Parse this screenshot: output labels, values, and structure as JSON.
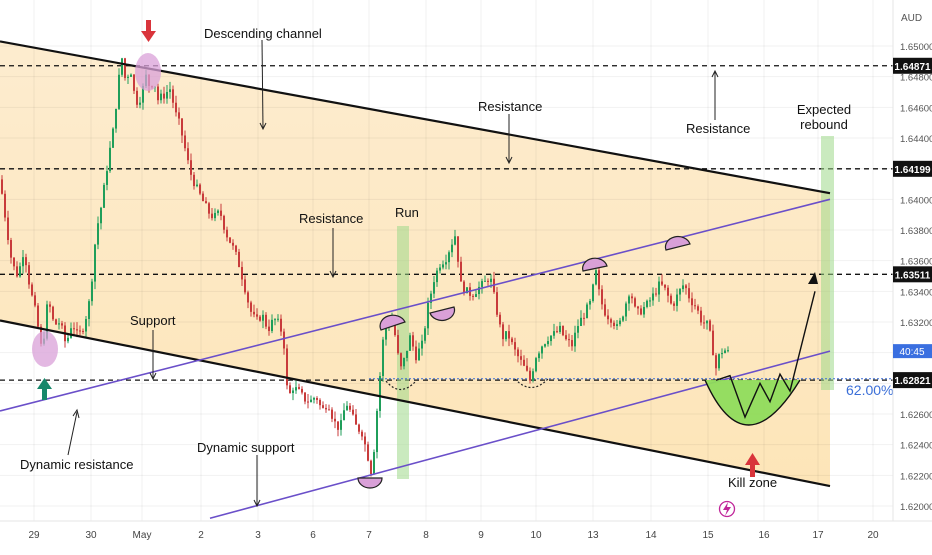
{
  "currency": "AUD",
  "timer": "40:45",
  "fib_label": "62.00%",
  "price_axis": {
    "ticks": [
      "1.65000",
      "1.64800",
      "1.64600",
      "1.64400",
      "1.64200",
      "1.64000",
      "1.63800",
      "1.63600",
      "1.63400",
      "1.63200",
      "1.63000",
      "1.62800",
      "1.62600",
      "1.62400",
      "1.62200",
      "1.62000"
    ],
    "levels": [
      {
        "label": "1.64871",
        "price": 1.64871
      },
      {
        "label": "1.64199",
        "price": 1.64199
      },
      {
        "label": "1.63511",
        "price": 1.63511
      },
      {
        "label": "1.62821",
        "price": 1.62821
      }
    ],
    "current_price": 1.6301
  },
  "time_axis": [
    "29",
    "30",
    "May",
    "2",
    "3",
    "6",
    "7",
    "8",
    "9",
    "10",
    "13",
    "14",
    "15",
    "16",
    "17",
    "20"
  ],
  "annotations": {
    "descending_channel": "Descending channel",
    "resistance_top": "Resistance",
    "resistance_right": "Resistance",
    "resistance_mid": "Resistance",
    "expected_rebound": "Expected\nrebound",
    "run": "Run",
    "support": "Support",
    "dynamic_support": "Dynamic support",
    "dynamic_resistance": "Dynamic resistance",
    "kill_zone": "Kill zone"
  },
  "colors": {
    "zone": "#fde9c4",
    "channel_line": "#111111",
    "trend_line": "#6a4fc9",
    "candle_up": "#1f9e5a",
    "candle_down": "#c83b3b",
    "green_box": "#9ed98a",
    "pink_circle": "#d9a0d8",
    "kill_zone": "#8fdc5c",
    "fib": "#3b6fd8",
    "arrow_red": "#d9343b",
    "arrow_green": "#16876a"
  },
  "chart_data": {
    "type": "candlestick",
    "instrument_quote": "AUD",
    "ylim": [
      1.6193,
      1.6518
    ],
    "x_ticks": [
      "29",
      "30",
      "May",
      "2",
      "3",
      "6",
      "7",
      "8",
      "9",
      "10",
      "13",
      "14",
      "15",
      "16",
      "17",
      "20"
    ],
    "horizontal_levels": [
      1.64871,
      1.64199,
      1.63511,
      1.62821
    ],
    "fib_level": {
      "label": "62.00%",
      "price": 1.6283
    },
    "close_path": [
      [
        0,
        1.6413
      ],
      [
        6,
        1.6385
      ],
      [
        12,
        1.6358
      ],
      [
        18,
        1.635
      ],
      [
        24,
        1.6368
      ],
      [
        30,
        1.6342
      ],
      [
        36,
        1.6325
      ],
      [
        42,
        1.63
      ],
      [
        48,
        1.6335
      ],
      [
        54,
        1.6318
      ],
      [
        60,
        1.632
      ],
      [
        66,
        1.6305
      ],
      [
        72,
        1.632
      ],
      [
        78,
        1.631
      ],
      [
        84,
        1.6318
      ],
      [
        90,
        1.6335
      ],
      [
        96,
        1.6378
      ],
      [
        102,
        1.6398
      ],
      [
        108,
        1.6425
      ],
      [
        114,
        1.6448
      ],
      [
        118,
        1.6475
      ],
      [
        122,
        1.6492
      ],
      [
        126,
        1.6475
      ],
      [
        130,
        1.6488
      ],
      [
        134,
        1.647
      ],
      [
        138,
        1.6462
      ],
      [
        142,
        1.647
      ],
      [
        146,
        1.648
      ],
      [
        150,
        1.6473
      ],
      [
        154,
        1.6478
      ],
      [
        158,
        1.6465
      ],
      [
        164,
        1.6468
      ],
      [
        170,
        1.6472
      ],
      [
        176,
        1.6455
      ],
      [
        180,
        1.6448
      ],
      [
        186,
        1.643
      ],
      [
        190,
        1.6418
      ],
      [
        196,
        1.6408
      ],
      [
        202,
        1.64
      ],
      [
        208,
        1.6392
      ],
      [
        214,
        1.6388
      ],
      [
        220,
        1.6392
      ],
      [
        226,
        1.6378
      ],
      [
        232,
        1.637
      ],
      [
        238,
        1.636
      ],
      [
        244,
        1.6345
      ],
      [
        250,
        1.6328
      ],
      [
        256,
        1.632
      ],
      [
        262,
        1.6325
      ],
      [
        268,
        1.6315
      ],
      [
        274,
        1.6322
      ],
      [
        280,
        1.6318
      ],
      [
        284,
        1.6305
      ],
      [
        288,
        1.6268
      ],
      [
        292,
        1.6278
      ],
      [
        298,
        1.6275
      ],
      [
        304,
        1.627
      ],
      [
        310,
        1.6268
      ],
      [
        316,
        1.6272
      ],
      [
        322,
        1.6262
      ],
      [
        328,
        1.6268
      ],
      [
        334,
        1.6255
      ],
      [
        340,
        1.625
      ],
      [
        346,
        1.6268
      ],
      [
        350,
        1.6262
      ],
      [
        356,
        1.6252
      ],
      [
        362,
        1.6248
      ],
      [
        368,
        1.6232
      ],
      [
        372,
        1.622
      ],
      [
        376,
        1.6255
      ],
      [
        380,
        1.6285
      ],
      [
        384,
        1.6315
      ],
      [
        388,
        1.6318
      ],
      [
        392,
        1.6322
      ],
      [
        396,
        1.6308
      ],
      [
        400,
        1.6288
      ],
      [
        404,
        1.6295
      ],
      [
        410,
        1.631
      ],
      [
        416,
        1.6298
      ],
      [
        422,
        1.6305
      ],
      [
        428,
        1.633
      ],
      [
        434,
        1.6348
      ],
      [
        440,
        1.6358
      ],
      [
        446,
        1.6362
      ],
      [
        452,
        1.6372
      ],
      [
        456,
        1.6378
      ],
      [
        460,
        1.6345
      ],
      [
        466,
        1.634
      ],
      [
        472,
        1.6338
      ],
      [
        478,
        1.6342
      ],
      [
        484,
        1.6345
      ],
      [
        490,
        1.635
      ],
      [
        496,
        1.633
      ],
      [
        502,
        1.631
      ],
      [
        508,
        1.6312
      ],
      [
        514,
        1.6302
      ],
      [
        520,
        1.6295
      ],
      [
        526,
        1.6288
      ],
      [
        530,
        1.6282
      ],
      [
        536,
        1.6298
      ],
      [
        542,
        1.6305
      ],
      [
        548,
        1.631
      ],
      [
        554,
        1.6312
      ],
      [
        560,
        1.6315
      ],
      [
        566,
        1.6308
      ],
      [
        572,
        1.6305
      ],
      [
        578,
        1.6318
      ],
      [
        584,
        1.6325
      ],
      [
        590,
        1.6332
      ],
      [
        596,
        1.6352
      ],
      [
        600,
        1.6335
      ],
      [
        606,
        1.6325
      ],
      [
        612,
        1.6322
      ],
      [
        618,
        1.6315
      ],
      [
        624,
        1.6328
      ],
      [
        630,
        1.6342
      ],
      [
        636,
        1.6325
      ],
      [
        642,
        1.6328
      ],
      [
        648,
        1.6332
      ],
      [
        654,
        1.6338
      ],
      [
        660,
        1.6345
      ],
      [
        666,
        1.634
      ],
      [
        672,
        1.633
      ],
      [
        678,
        1.6338
      ],
      [
        684,
        1.6345
      ],
      [
        690,
        1.6335
      ],
      [
        696,
        1.633
      ],
      [
        702,
        1.632
      ],
      [
        708,
        1.6318
      ],
      [
        712,
        1.6305
      ],
      [
        716,
        1.629
      ],
      [
        720,
        1.63
      ],
      [
        724,
        1.6302
      ],
      [
        728,
        1.63
      ]
    ],
    "lines": {
      "descending_channel_top": [
        [
          0,
          1.6503
        ],
        [
          830,
          1.6404
        ]
      ],
      "descending_channel_bottom": [
        [
          0,
          1.6321
        ],
        [
          830,
          1.6213
        ]
      ],
      "ascending_upper": [
        [
          0,
          1.6262
        ],
        [
          830,
          1.64
        ]
      ],
      "ascending_lower": [
        [
          210,
          1.6192
        ],
        [
          830,
          1.6301
        ]
      ]
    },
    "projection_path": [
      [
        716,
        1.6282
      ],
      [
        730,
        1.6285
      ],
      [
        745,
        1.6258
      ],
      [
        760,
        1.628
      ],
      [
        770,
        1.6268
      ],
      [
        780,
        1.6286
      ],
      [
        790,
        1.6275
      ],
      [
        815,
        1.634
      ]
    ]
  }
}
